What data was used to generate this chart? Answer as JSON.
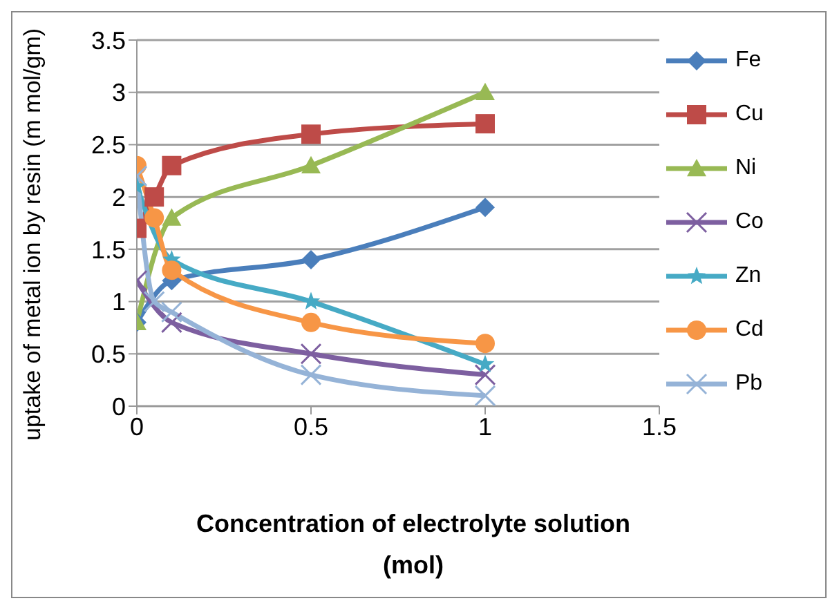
{
  "chart_data": {
    "type": "line",
    "xlabel": "Concentration of electrolyte solution (mol)",
    "ylabel": "uptake of metal ion by resin (m mol/gm)",
    "xlim": [
      0,
      1.5
    ],
    "xticks": [
      0,
      0.5,
      1,
      1.5
    ],
    "ylim": [
      0,
      3.5
    ],
    "yticks": [
      0,
      0.5,
      1,
      1.5,
      2,
      2.5,
      3,
      3.5
    ],
    "grid": "y",
    "legend": "right",
    "series": [
      {
        "name": "Fe",
        "color": "#4a7ebb",
        "marker": "diamond",
        "x": [
          0,
          0.1,
          0.5,
          1
        ],
        "values": [
          0.8,
          1.2,
          1.4,
          1.9
        ]
      },
      {
        "name": "Cu",
        "color": "#be4b48",
        "marker": "square",
        "x": [
          0,
          0.05,
          0.1,
          0.5,
          1
        ],
        "values": [
          1.7,
          2.0,
          2.3,
          2.6,
          2.7
        ]
      },
      {
        "name": "Ni",
        "color": "#98b954",
        "marker": "triangle",
        "x": [
          0,
          0.1,
          0.5,
          1
        ],
        "values": [
          0.8,
          1.8,
          2.3,
          3.0
        ]
      },
      {
        "name": "Co",
        "color": "#7d5fa0",
        "marker": "cross",
        "x": [
          0,
          0.1,
          0.5,
          1
        ],
        "values": [
          1.2,
          0.8,
          0.5,
          0.3
        ]
      },
      {
        "name": "Zn",
        "color": "#46aac5",
        "marker": "star",
        "x": [
          0,
          0.1,
          0.5,
          1
        ],
        "values": [
          2.1,
          1.4,
          1.0,
          0.4
        ]
      },
      {
        "name": "Cd",
        "color": "#f79646",
        "marker": "circle",
        "x": [
          0,
          0.05,
          0.1,
          0.5,
          1
        ],
        "values": [
          2.3,
          1.8,
          1.3,
          0.8,
          0.6
        ]
      },
      {
        "name": "Pb",
        "color": "#95b3d7",
        "marker": "cross",
        "x": [
          0,
          0.05,
          0.1,
          0.5,
          1
        ],
        "values": [
          2.2,
          1.0,
          0.9,
          0.3,
          0.1
        ]
      }
    ]
  }
}
